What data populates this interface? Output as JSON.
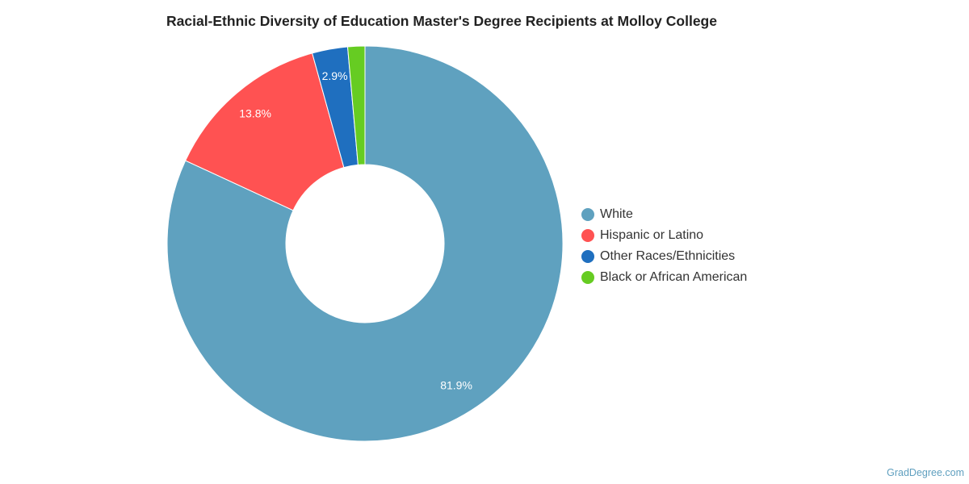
{
  "chart_data": {
    "type": "pie",
    "title": "Racial-Ethnic Diversity of Education Master's Degree Recipients at Molloy College",
    "legend_position": "right",
    "donut": true,
    "slices": [
      {
        "name": "White",
        "value": 81.9,
        "label": "81.9%",
        "color": "#5fa1bf"
      },
      {
        "name": "Hispanic or Latino",
        "value": 13.8,
        "label": "13.8%",
        "color": "#ff5252"
      },
      {
        "name": "Other Races/Ethnicities",
        "value": 2.9,
        "label": "2.9%",
        "color": "#1f6fbf"
      },
      {
        "name": "Black or African American",
        "value": 1.4,
        "label": "",
        "color": "#66cc22"
      }
    ]
  },
  "credit": "GradDegree.com"
}
